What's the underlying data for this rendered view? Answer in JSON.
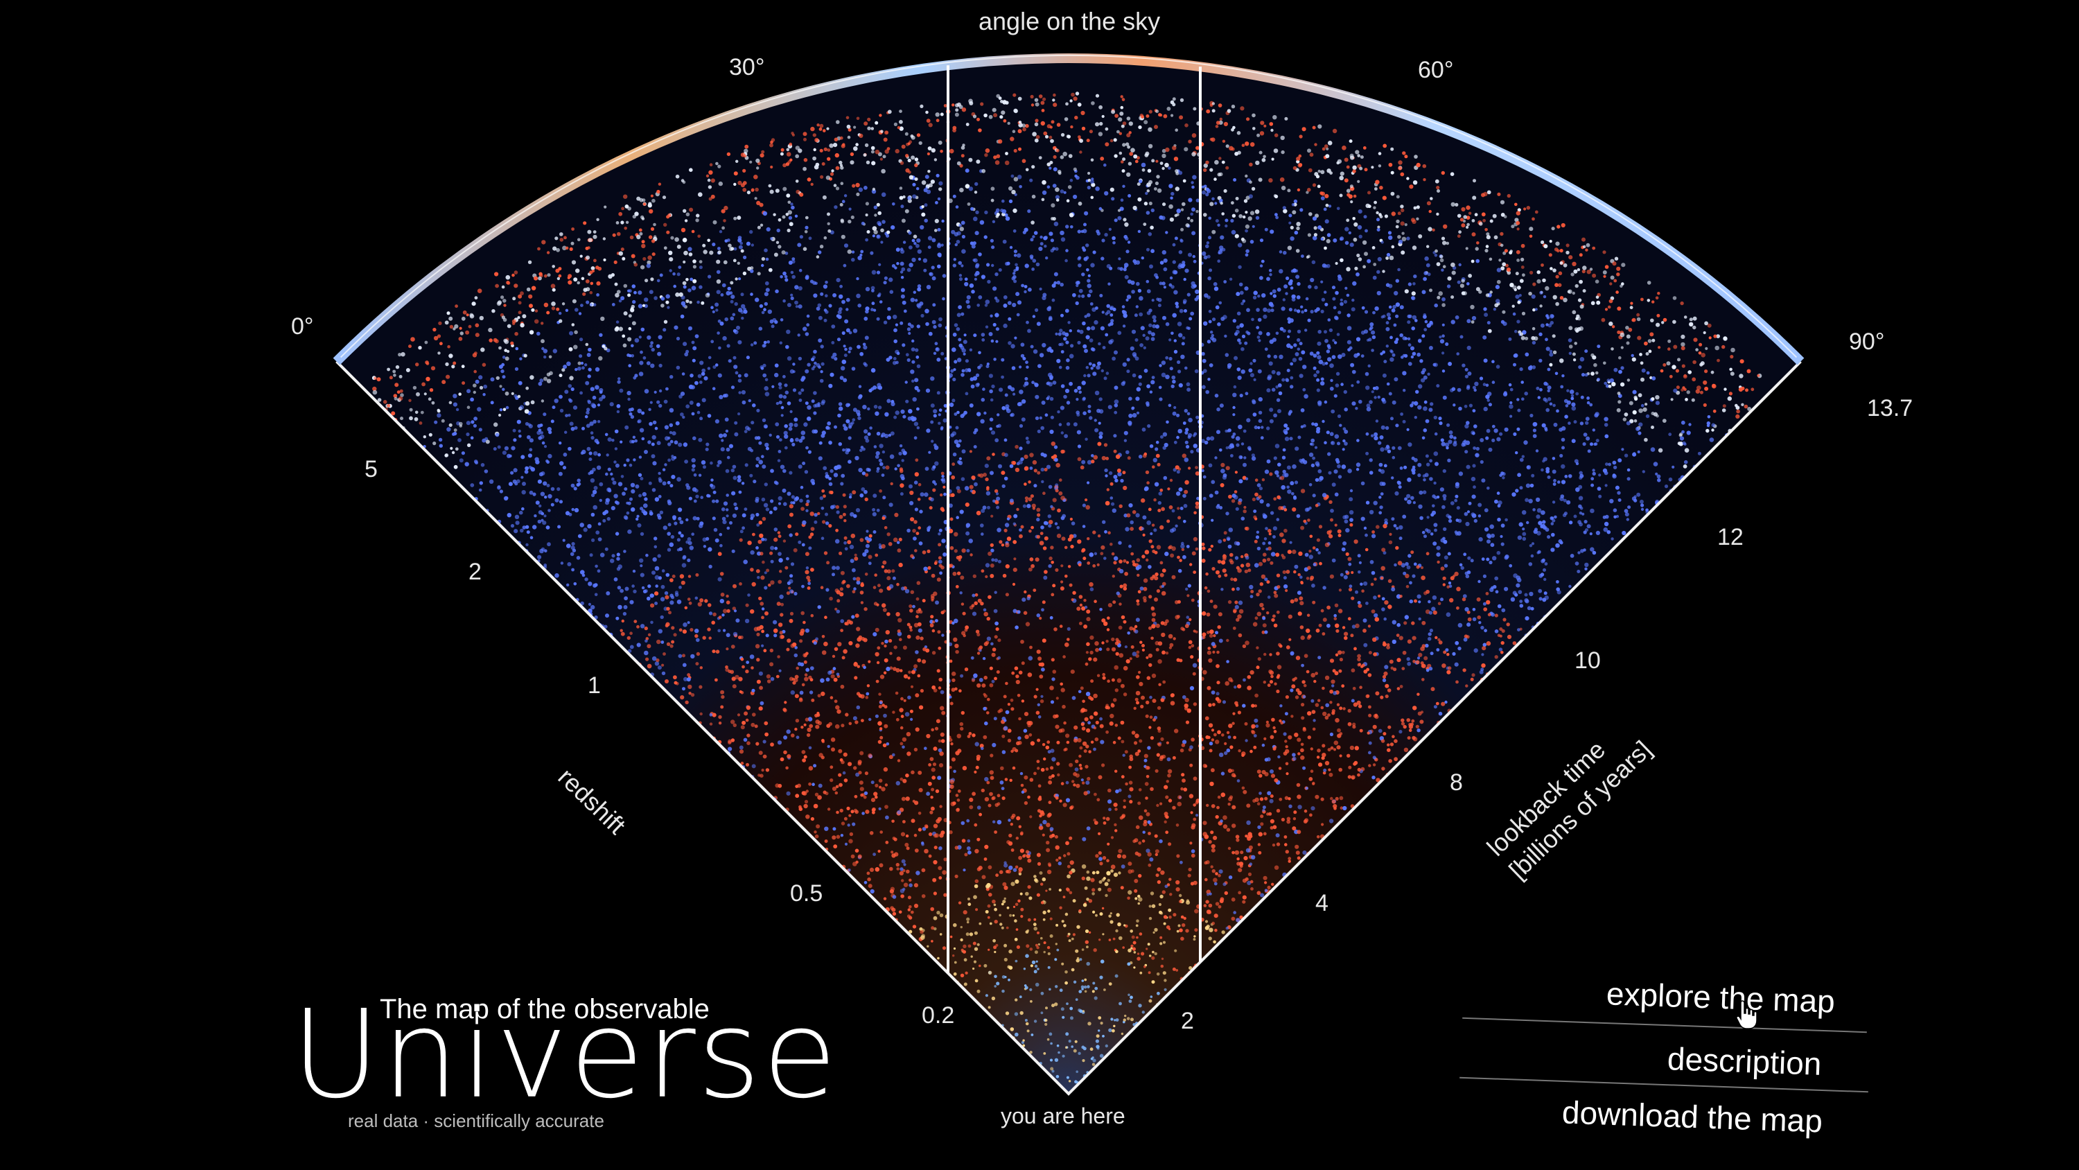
{
  "map": {
    "angle_title": "angle on the sky",
    "angle_ticks": [
      "0°",
      "30°",
      "60°",
      "90°"
    ],
    "redshift_title": "redshift",
    "redshift_ticks": [
      "5",
      "2",
      "1",
      "0.5",
      "0.2"
    ],
    "lookback_title_1": "lookback time",
    "lookback_title_2": "[billions of years]",
    "lookback_ticks": [
      "13.7",
      "12",
      "10",
      "8",
      "4",
      "2"
    ],
    "origin_label": "you are here",
    "colors": {
      "far": "#5a78ff",
      "mid": "#ff5a3a",
      "near": "#ffd98a",
      "nearest": "#7fb8ff",
      "rim_light": "#e8f0ff"
    }
  },
  "brand": {
    "line1": "The map of the observable",
    "line2": "Universe",
    "tagline": "real data · scientifically accurate"
  },
  "menu": {
    "explore": "explore the map",
    "description": "description",
    "download": "download the map"
  },
  "icons": {
    "cursor": "hand-pointer-icon"
  }
}
